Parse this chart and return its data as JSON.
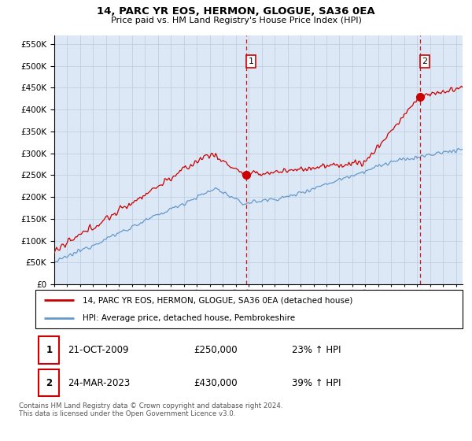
{
  "title": "14, PARC YR EOS, HERMON, GLOGUE, SA36 0EA",
  "subtitle": "Price paid vs. HM Land Registry's House Price Index (HPI)",
  "ylim": [
    0,
    570000
  ],
  "yticks": [
    0,
    50000,
    100000,
    150000,
    200000,
    250000,
    300000,
    350000,
    400000,
    450000,
    500000,
    550000
  ],
  "xlim_start": 1995.0,
  "xlim_end": 2026.5,
  "sale1_x": 2009.81,
  "sale1_y": 250000,
  "sale2_x": 2023.23,
  "sale2_y": 430000,
  "legend_line1": "14, PARC YR EOS, HERMON, GLOGUE, SA36 0EA (detached house)",
  "legend_line2": "HPI: Average price, detached house, Pembrokeshire",
  "table_row1": [
    "1",
    "21-OCT-2009",
    "£250,000",
    "23% ↑ HPI"
  ],
  "table_row2": [
    "2",
    "24-MAR-2023",
    "£430,000",
    "39% ↑ HPI"
  ],
  "footnote": "Contains HM Land Registry data © Crown copyright and database right 2024.\nThis data is licensed under the Open Government Licence v3.0.",
  "hpi_color": "#6699cc",
  "price_color": "#cc0000",
  "vline_color": "#cc0000",
  "bg_color": "#dce8f5",
  "plot_bg": "#ffffff",
  "grid_color": "#bbccdd"
}
